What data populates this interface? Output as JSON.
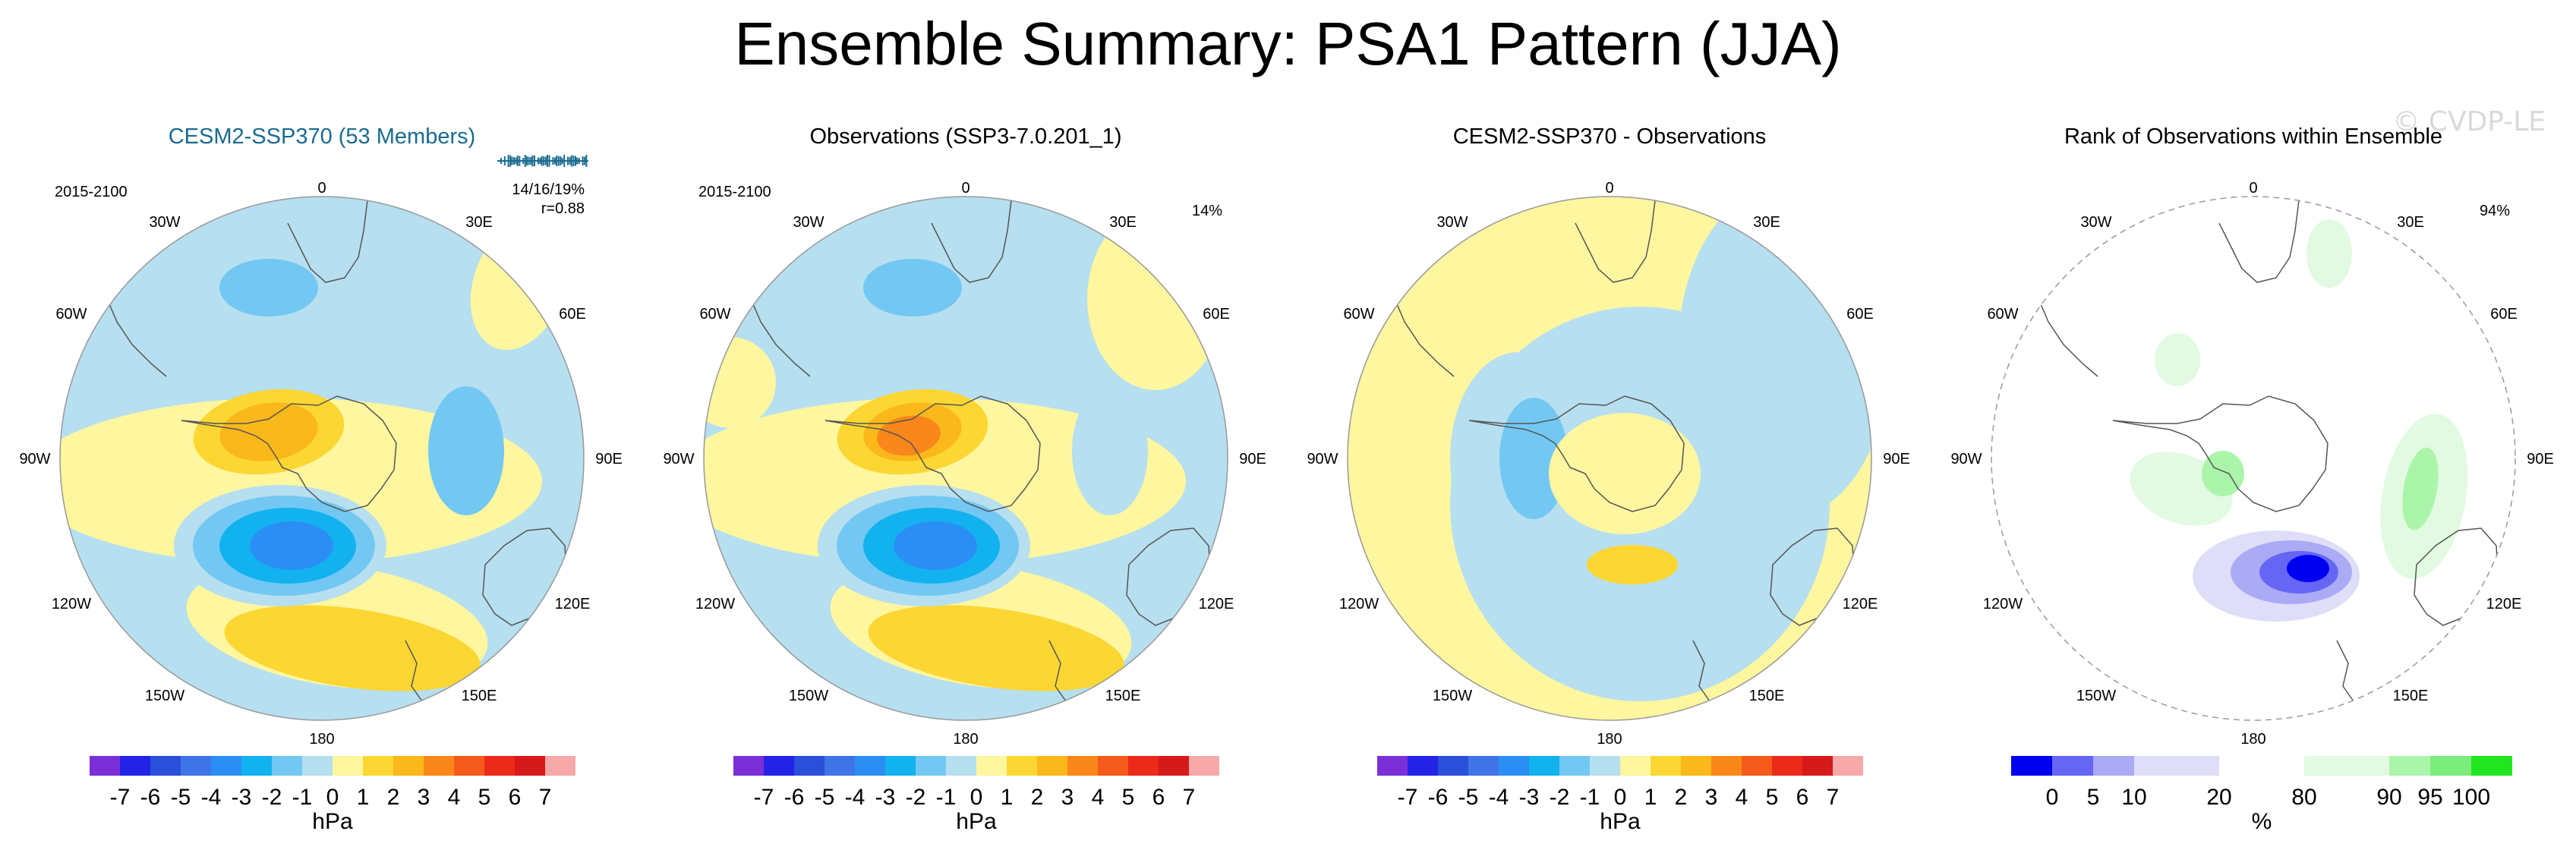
{
  "figure": {
    "title": "Ensemble Summary: PSA1 Pattern (JJA)",
    "watermark": "© CVDP-LE"
  },
  "colors": {
    "land_outline": "#555555",
    "map_border": "#999999",
    "neg": [
      "#7b2fd6",
      "#2323e6",
      "#2a4fd9",
      "#3f74e6",
      "#2b8ef5",
      "#12b2ef",
      "#72c8f2",
      "#b6dff0"
    ],
    "pos": [
      "#fff6a0",
      "#fcd633",
      "#fbb81a",
      "#f9871a",
      "#f45a1a",
      "#ec2a1a",
      "#d61a1a",
      "#f7a8a8"
    ],
    "rank": [
      "#0000f0",
      "#6666f5",
      "#aaaaf5",
      "#dedef8",
      "#ffffff",
      "#e1fae1",
      "#aaf5aa",
      "#7cec7c",
      "#22e522"
    ]
  },
  "panels": [
    {
      "id": "cesm2",
      "title": "CESM2-SSP370 (53 Members)",
      "period": "2015-2100",
      "stats": [
        "14/16/19%",
        "r=0.88"
      ],
      "colorbar_ticks": [
        "-7",
        "-6",
        "-5",
        "-4",
        "-3",
        "-2",
        "-1",
        "0",
        "1",
        "2",
        "3",
        "4",
        "5",
        "6",
        "7"
      ],
      "colorbar_unit": "hPa"
    },
    {
      "id": "obs",
      "title": "Observations (SSP3-7.0.201_1)",
      "period": "2015-2100",
      "stats": [
        "14%"
      ],
      "colorbar_ticks": [
        "-7",
        "-6",
        "-5",
        "-4",
        "-3",
        "-2",
        "-1",
        "0",
        "1",
        "2",
        "3",
        "4",
        "5",
        "6",
        "7"
      ],
      "colorbar_unit": "hPa"
    },
    {
      "id": "diff",
      "title": "CESM2-SSP370 - Observations",
      "period": "",
      "stats": [],
      "colorbar_ticks": [
        "-7",
        "-6",
        "-5",
        "-4",
        "-3",
        "-2",
        "-1",
        "0",
        "1",
        "2",
        "3",
        "4",
        "5",
        "6",
        "7"
      ],
      "colorbar_unit": "hPa"
    },
    {
      "id": "rank",
      "title": "Rank of Observations within Ensemble",
      "period": "",
      "stats": [
        "94%"
      ],
      "colorbar_ticks": [
        "0",
        "5",
        "10",
        "20",
        "80",
        "90",
        "95",
        "100"
      ],
      "colorbar_unit": "%"
    }
  ],
  "longitude_labels": {
    "top": "0",
    "bottom": "180",
    "e30": "30E",
    "e60": "60E",
    "e90": "90E",
    "e120": "120E",
    "e150": "150E",
    "w30": "30W",
    "w60": "60W",
    "w90": "90W",
    "w120": "120W",
    "w150": "150W"
  }
}
